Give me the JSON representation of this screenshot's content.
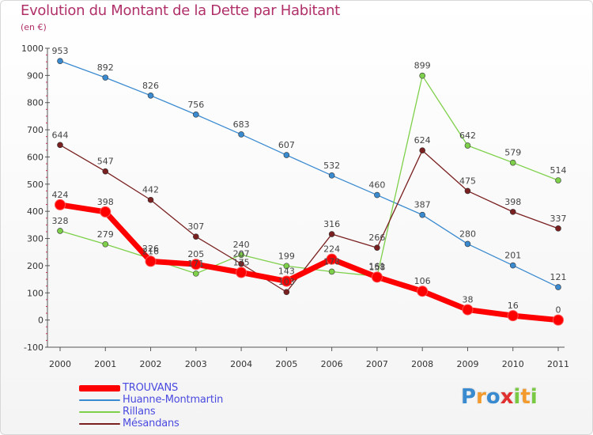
{
  "page": {
    "title": "Evolution du Montant de la Dette par Habitant",
    "subtitle": "(en €)"
  },
  "chart_data": {
    "type": "line",
    "title": "Evolution du Montant de la Dette par Habitant",
    "subtitle": "(en €)",
    "xlabel": "",
    "ylabel": "",
    "categories": [
      "2000",
      "2001",
      "2002",
      "2003",
      "2004",
      "2005",
      "2006",
      "2007",
      "2008",
      "2009",
      "2010",
      "2011"
    ],
    "ylim": [
      -100,
      1000
    ],
    "yticks": [
      -100,
      0,
      100,
      200,
      300,
      400,
      500,
      600,
      700,
      800,
      900,
      1000
    ],
    "grid": false,
    "legend_position": "bottom",
    "series": [
      {
        "name": "TROUVANS",
        "color": "#ff0000",
        "values": [
          424,
          398,
          216,
          205,
          175,
          143,
          224,
          158,
          106,
          38,
          16,
          0
        ]
      },
      {
        "name": "Huanne-Montmartin",
        "color": "#3a8ad0",
        "values": [
          953,
          892,
          826,
          756,
          683,
          607,
          532,
          460,
          387,
          280,
          201,
          121
        ]
      },
      {
        "name": "Rillans",
        "color": "#7ed04a",
        "values": [
          328,
          279,
          226,
          171,
          240,
          199,
          178,
          161,
          899,
          642,
          579,
          514
        ]
      },
      {
        "name": "Mésandans",
        "color": "#7a2020",
        "values": [
          644,
          547,
          442,
          307,
          207,
          103,
          316,
          266,
          624,
          475,
          398,
          337
        ]
      }
    ]
  },
  "logo": {
    "text": "Proxiti",
    "letters": [
      {
        "ch": "P",
        "color": "#3a8ad0"
      },
      {
        "ch": "r",
        "color": "#f29a2e"
      },
      {
        "ch": "o",
        "color": "#3a8ad0"
      },
      {
        "ch": "x",
        "color": "#e03030"
      },
      {
        "ch": "i",
        "color": "#7ac943"
      },
      {
        "ch": "t",
        "color": "#f29a2e"
      },
      {
        "ch": "i",
        "color": "#7ac943"
      }
    ]
  }
}
